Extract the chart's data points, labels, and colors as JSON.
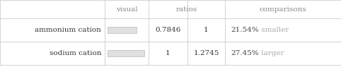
{
  "rows": [
    {
      "label": "ammonium cation",
      "ratio1": "0.7846",
      "ratio2": "1",
      "comparison_pct": "21.54%",
      "comparison_word": " smaller",
      "bar_ratio": 0.7846,
      "bar_color": "#e0e0e0",
      "bar_edge_color": "#bbbbbb",
      "pct_color": "#444444",
      "word_color": "#aaaaaa"
    },
    {
      "label": "sodium cation",
      "ratio1": "1",
      "ratio2": "1.2745",
      "comparison_pct": "27.45%",
      "comparison_word": " larger",
      "bar_ratio": 1.0,
      "bar_color": "#e0e0e0",
      "bar_edge_color": "#bbbbbb",
      "pct_color": "#444444",
      "word_color": "#aaaaaa"
    }
  ],
  "header_color": "#888888",
  "label_color": "#333333",
  "grid_color": "#cccccc",
  "bg_color": "#ffffff",
  "font_size": 7.5,
  "header_font_size": 7.5,
  "col_bounds": [
    0,
    148,
    210,
    265,
    318,
    482
  ],
  "row_tops": [
    0,
    26,
    59,
    92
  ],
  "max_bar_width": 52
}
